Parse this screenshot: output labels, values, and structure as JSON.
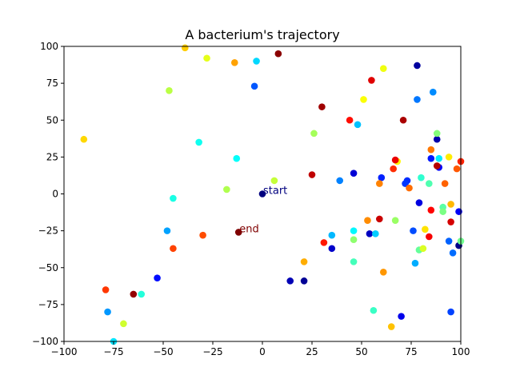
{
  "chart_data": {
    "type": "scatter",
    "title": "A bacterium's trajectory",
    "xlabel": "",
    "ylabel": "",
    "xlim": [
      -100,
      100
    ],
    "ylim": [
      -100,
      100
    ],
    "x_ticks": [
      -100,
      -75,
      -50,
      -25,
      0,
      25,
      50,
      75,
      100
    ],
    "y_ticks": [
      -100,
      -75,
      -50,
      -25,
      0,
      25,
      50,
      75,
      100
    ],
    "grid": false,
    "colormap": "jet",
    "colormap_stops": [
      "#00007f",
      "#0000ff",
      "#007fff",
      "#00ffff",
      "#7fff7f",
      "#ffff00",
      "#ff7f00",
      "#ff0000",
      "#7f0000"
    ],
    "annotations": [
      {
        "text": "start",
        "x": 0,
        "y": 0,
        "color": "#00007f"
      },
      {
        "text": "end",
        "x": -12,
        "y": -26,
        "color": "#7f0000"
      }
    ],
    "points": [
      {
        "x": 0,
        "y": 0
      },
      {
        "x": 99,
        "y": -35
      },
      {
        "x": 21,
        "y": -59
      },
      {
        "x": 78,
        "y": 87
      },
      {
        "x": 88,
        "y": 37
      },
      {
        "x": 14,
        "y": -59
      },
      {
        "x": 54,
        "y": -27
      },
      {
        "x": 35,
        "y": -37
      },
      {
        "x": 46,
        "y": 14
      },
      {
        "x": 79,
        "y": -6
      },
      {
        "x": 70,
        "y": -83
      },
      {
        "x": 99,
        "y": -12
      },
      {
        "x": 89,
        "y": 18
      },
      {
        "x": -53,
        "y": -57
      },
      {
        "x": 85,
        "y": 24
      },
      {
        "x": 60,
        "y": 11
      },
      {
        "x": 73,
        "y": 9
      },
      {
        "x": 72,
        "y": 7
      },
      {
        "x": 95,
        "y": -80
      },
      {
        "x": 76,
        "y": -25
      },
      {
        "x": -4,
        "y": 73
      },
      {
        "x": 94,
        "y": -32
      },
      {
        "x": 96,
        "y": -40
      },
      {
        "x": 78,
        "y": 64
      },
      {
        "x": 39,
        "y": 9
      },
      {
        "x": 86,
        "y": 69
      },
      {
        "x": -78,
        "y": -80
      },
      {
        "x": -48,
        "y": -25
      },
      {
        "x": 77,
        "y": -47
      },
      {
        "x": 35,
        "y": -28
      },
      {
        "x": 48,
        "y": 47
      },
      {
        "x": 57,
        "y": -27
      },
      {
        "x": -3,
        "y": 90
      },
      {
        "x": -75,
        "y": -100
      },
      {
        "x": 89,
        "y": 24
      },
      {
        "x": 46,
        "y": -25
      },
      {
        "x": -13,
        "y": 24
      },
      {
        "x": -32,
        "y": 35
      },
      {
        "x": -45,
        "y": -3
      },
      {
        "x": -61,
        "y": -68
      },
      {
        "x": 80,
        "y": 11
      },
      {
        "x": 56,
        "y": -79
      },
      {
        "x": 46,
        "y": -46
      },
      {
        "x": 84,
        "y": 7
      },
      {
        "x": 91,
        "y": -9
      },
      {
        "x": 79,
        "y": -38
      },
      {
        "x": 100,
        "y": -32
      },
      {
        "x": 91,
        "y": -12
      },
      {
        "x": 88,
        "y": 41
      },
      {
        "x": 46,
        "y": -31
      },
      {
        "x": 67,
        "y": -18
      },
      {
        "x": 26,
        "y": 41
      },
      {
        "x": -18,
        "y": 3
      },
      {
        "x": -47,
        "y": 70
      },
      {
        "x": 6,
        "y": 9
      },
      {
        "x": -70,
        "y": -88
      },
      {
        "x": 81,
        "y": -37
      },
      {
        "x": -28,
        "y": 92
      },
      {
        "x": 61,
        "y": 85
      },
      {
        "x": 51,
        "y": 64
      },
      {
        "x": 68,
        "y": 22
      },
      {
        "x": 94,
        "y": 25
      },
      {
        "x": 82,
        "y": -24
      },
      {
        "x": -90,
        "y": 37
      },
      {
        "x": -39,
        "y": 99
      },
      {
        "x": 65,
        "y": -90
      },
      {
        "x": 95,
        "y": -7
      },
      {
        "x": 21,
        "y": -46
      },
      {
        "x": -14,
        "y": 89
      },
      {
        "x": 61,
        "y": -53
      },
      {
        "x": 53,
        "y": -18
      },
      {
        "x": 59,
        "y": 7
      },
      {
        "x": 85,
        "y": 30
      },
      {
        "x": 74,
        "y": 4
      },
      {
        "x": 92,
        "y": 7
      },
      {
        "x": 98,
        "y": 17
      },
      {
        "x": -30,
        "y": -28
      },
      {
        "x": -45,
        "y": -37
      },
      {
        "x": -79,
        "y": -65
      },
      {
        "x": 66,
        "y": 17
      },
      {
        "x": 100,
        "y": 22
      },
      {
        "x": 31,
        "y": -33
      },
      {
        "x": 44,
        "y": 50
      },
      {
        "x": 85,
        "y": -11
      },
      {
        "x": 84,
        "y": -29
      },
      {
        "x": 67,
        "y": 23
      },
      {
        "x": 55,
        "y": 77
      },
      {
        "x": 95,
        "y": -19
      },
      {
        "x": 59,
        "y": -17
      },
      {
        "x": 25,
        "y": 13
      },
      {
        "x": 88,
        "y": 19
      },
      {
        "x": 71,
        "y": 50
      },
      {
        "x": 30,
        "y": 59
      },
      {
        "x": -65,
        "y": -68
      },
      {
        "x": 8,
        "y": 95
      },
      {
        "x": -12,
        "y": -26
      }
    ]
  }
}
